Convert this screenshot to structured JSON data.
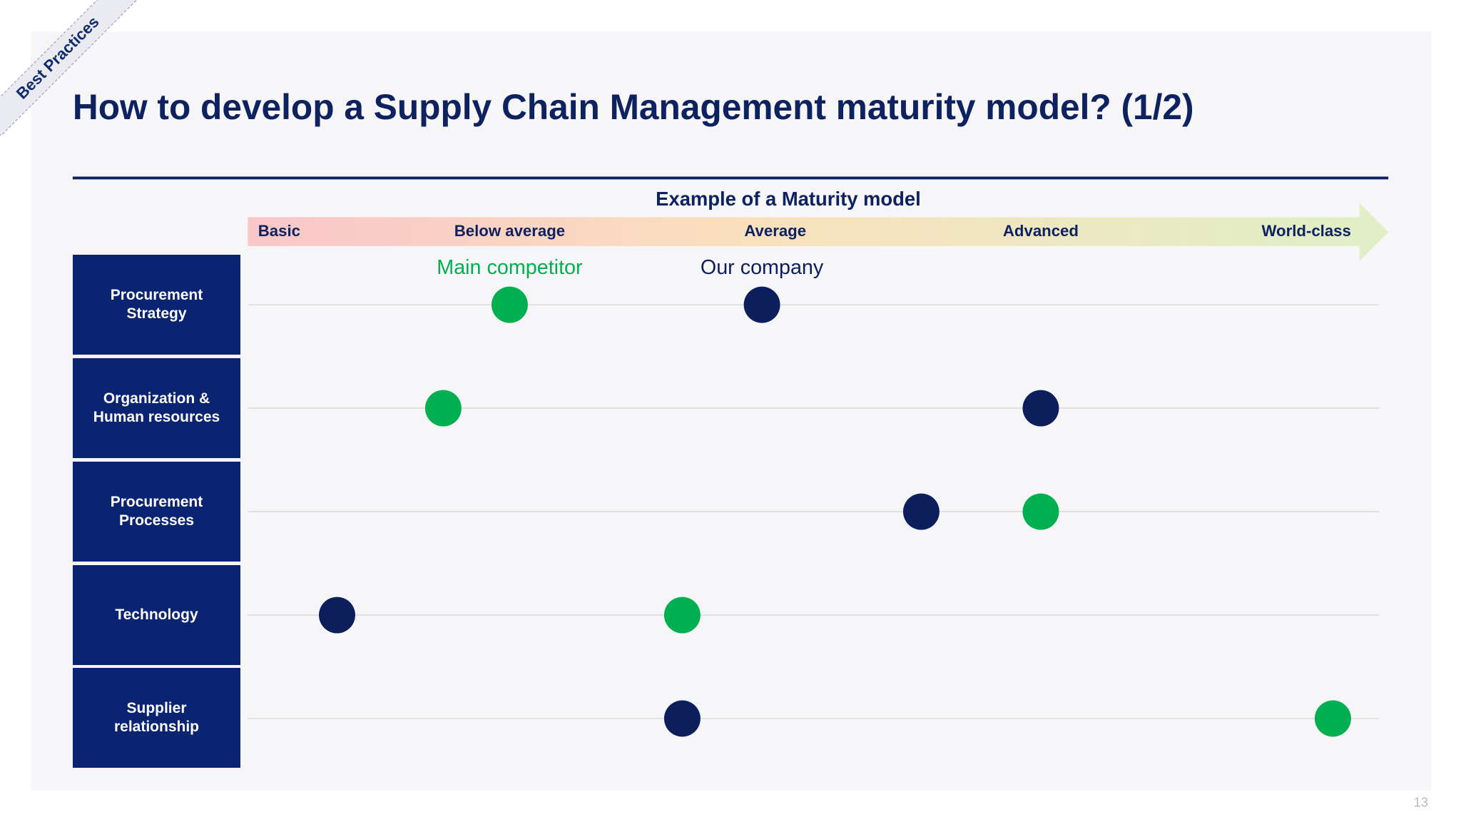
{
  "page": {
    "badge": "Best Practices",
    "page_number": "13"
  },
  "chart_data": {
    "type": "dot",
    "title": "How to develop a Supply Chain Management maturity model? (1/2)",
    "subtitle": "Example of a Maturity model",
    "categories": [
      "Procurement Strategy",
      "Organization & Human resources",
      "Procurement Processes",
      "Technology",
      "Supplier relationship"
    ],
    "xlim": [
      1,
      5.25
    ],
    "xticks": [
      {
        "value": 1,
        "label": "Basic"
      },
      {
        "value": 2,
        "label": "Below average"
      },
      {
        "value": 3,
        "label": "Average"
      },
      {
        "value": 4,
        "label": "Advanced"
      },
      {
        "value": 5,
        "label": "World-class"
      }
    ],
    "series": [
      {
        "name": "Main competitor",
        "color": "#00b050",
        "values": [
          2,
          1.75,
          4,
          2.65,
          5.1
        ]
      },
      {
        "name": "Our company",
        "color": "#0c1f5c",
        "values": [
          2.95,
          4,
          3.55,
          1.35,
          2.65
        ]
      }
    ]
  }
}
